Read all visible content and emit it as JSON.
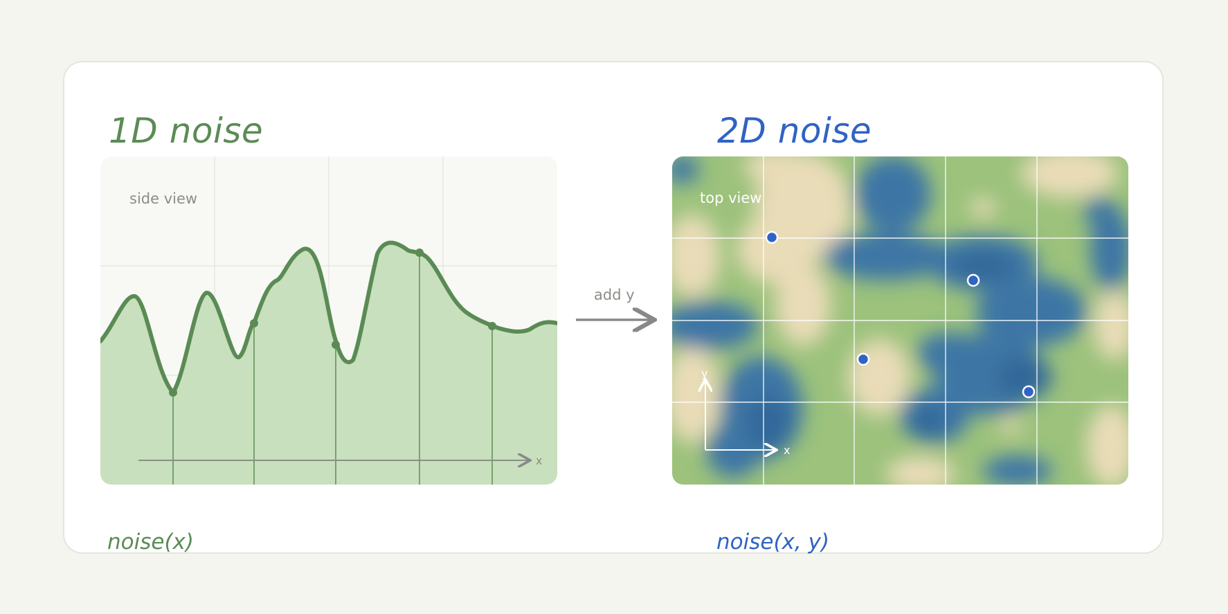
{
  "panel_1d": {
    "title": "1D noise",
    "view_label": "side view",
    "axis_label": "x",
    "formula": "noise(x)"
  },
  "connector": {
    "label": "add y"
  },
  "panel_2d": {
    "title": "2D noise",
    "view_label": "top view",
    "axis_x_label": "x",
    "axis_y_label": "y",
    "formula": "noise(x, y)"
  },
  "colors": {
    "green": "#5b8b55",
    "green_fill": "#c8e0bd",
    "blue": "#2f63c4",
    "water": "#3e77a6",
    "sand": "#e8dcba",
    "grass": "#9cc27c",
    "arrow_gray": "#888888"
  }
}
